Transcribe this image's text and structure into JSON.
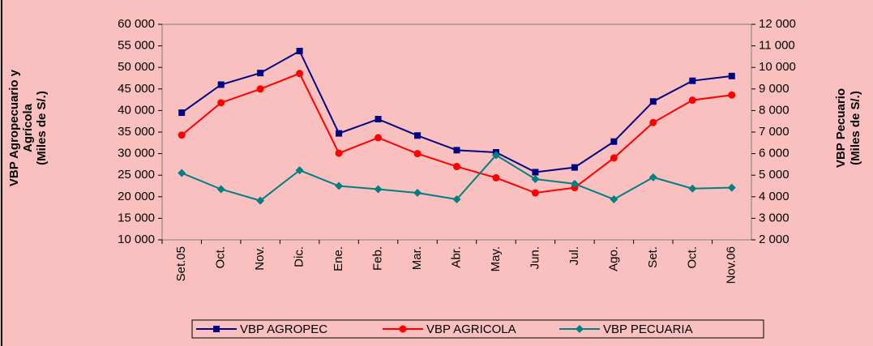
{
  "chart_data": {
    "type": "line",
    "y_title_lines": [
      "VBP Agropecuario y",
      "Agrícola",
      "(Miles de S/.)"
    ],
    "y2_title_lines": [
      "VBP Pecuario",
      "(Miles de S/.)"
    ],
    "categories": [
      "Set.05",
      "Oct.",
      "Nov.",
      "Dic.",
      "Ene.",
      "Feb.",
      "Mar.",
      "Abr.",
      "May.",
      "Jun.",
      "Jul.",
      "Ago.",
      "Set.",
      "Oct.",
      "Nov.06"
    ],
    "series": [
      {
        "name": "VBP AGROPEC",
        "color": "#000080",
        "marker": "square",
        "values": [
          39500,
          46000,
          48700,
          53800,
          34700,
          38000,
          34200,
          30800,
          30300,
          25700,
          26800,
          32800,
          42100,
          46900,
          48000
        ]
      },
      {
        "name": "VBP AGRICOLA",
        "color": "#ff0000",
        "marker": "circle",
        "values": [
          34300,
          41800,
          45000,
          48600,
          30100,
          33700,
          30000,
          27000,
          24400,
          20900,
          22100,
          29000,
          37200,
          42400,
          43600
        ]
      },
      {
        "name": "VBP PECUARIA",
        "color": "#008080",
        "marker": "diamond",
        "axis": "y2",
        "values": [
          5100,
          4350,
          3820,
          5230,
          4500,
          4350,
          4180,
          3880,
          5930,
          4820,
          4600,
          3880,
          4900,
          4380,
          4420
        ]
      }
    ],
    "ylim": [
      10000,
      60000
    ],
    "yticks": [
      {
        "value": 10000,
        "label": "10 000"
      },
      {
        "value": 15000,
        "label": "15 000"
      },
      {
        "value": 20000,
        "label": "20 000"
      },
      {
        "value": 25000,
        "label": "25 000"
      },
      {
        "value": 30000,
        "label": "30 000"
      },
      {
        "value": 35000,
        "label": "35 000"
      },
      {
        "value": 40000,
        "label": "40 000"
      },
      {
        "value": 45000,
        "label": "45 000"
      },
      {
        "value": 50000,
        "label": "50 000"
      },
      {
        "value": 55000,
        "label": "55 000"
      },
      {
        "value": 60000,
        "label": "60 000"
      }
    ],
    "y2lim": [
      2000,
      12000
    ],
    "y2ticks": [
      {
        "value": 2000,
        "label": "2 000"
      },
      {
        "value": 3000,
        "label": "3 000"
      },
      {
        "value": 4000,
        "label": "4 000"
      },
      {
        "value": 5000,
        "label": "5 000"
      },
      {
        "value": 6000,
        "label": "6 000"
      },
      {
        "value": 7000,
        "label": "7 000"
      },
      {
        "value": 8000,
        "label": "8 000"
      },
      {
        "value": 9000,
        "label": "9 000"
      },
      {
        "value": 10000,
        "label": "10 000"
      },
      {
        "value": 11000,
        "label": "11 000"
      },
      {
        "value": 12000,
        "label": "12 000"
      }
    ]
  }
}
